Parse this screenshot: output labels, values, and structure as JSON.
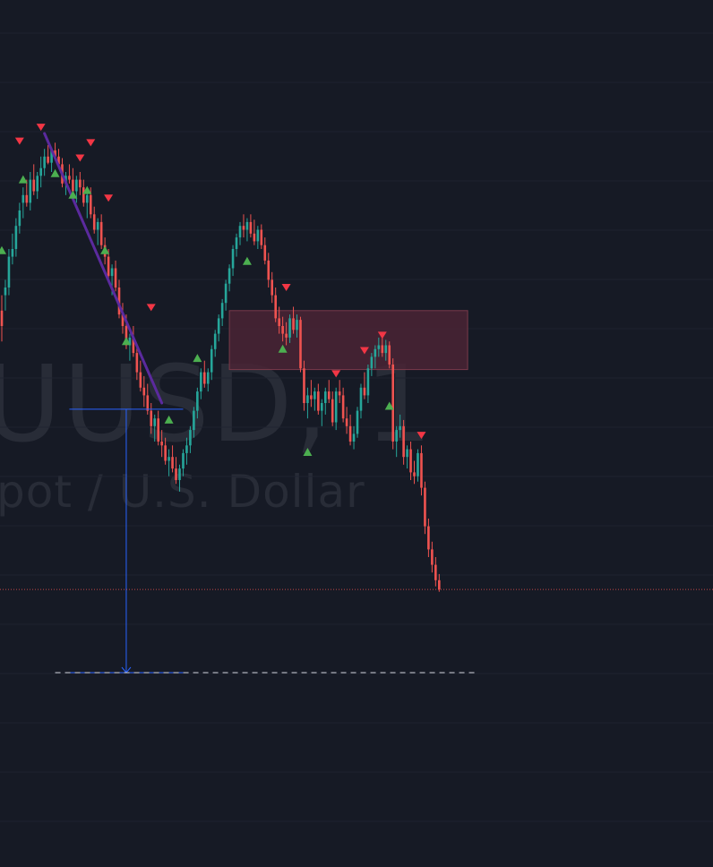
{
  "watermark": {
    "symbol": "UUSD, 1",
    "description": "pot / U.S. Dollar"
  },
  "colors": {
    "background": "#161a25",
    "grid": "#1f2330",
    "watermark": "#2a2e39",
    "candle_up": "#26a69a",
    "candle_down": "#ef5350",
    "candle_doji": "#f6a84a",
    "signal_buy": "#4caf50",
    "signal_sell": "#f23645",
    "trendline": "#5b2a9e",
    "zone_fill": "#4a2535",
    "zone_border": "#7a3a4a",
    "measure": "#2962ff",
    "target_line": "#d1d4dc",
    "last_price_line": "#ef5350"
  },
  "chart_data": {
    "type": "candlestick",
    "title": "",
    "xlabel": "",
    "ylabel": "",
    "x_range": [
      0,
      200
    ],
    "y_range": [
      0,
      1000
    ],
    "grid": true,
    "candles": [
      [
        0,
        620,
        640,
        580,
        600
      ],
      [
        1,
        640,
        660,
        620,
        650
      ],
      [
        2,
        650,
        700,
        640,
        690
      ],
      [
        3,
        690,
        720,
        680,
        700
      ],
      [
        4,
        700,
        740,
        690,
        730
      ],
      [
        5,
        730,
        760,
        720,
        750
      ],
      [
        6,
        760,
        780,
        740,
        770
      ],
      [
        7,
        770,
        790,
        755,
        760
      ],
      [
        8,
        760,
        800,
        750,
        790
      ],
      [
        9,
        790,
        810,
        770,
        775
      ],
      [
        10,
        775,
        800,
        765,
        795
      ],
      [
        11,
        795,
        820,
        780,
        805
      ],
      [
        12,
        805,
        830,
        795,
        820
      ],
      [
        13,
        820,
        835,
        810,
        812
      ],
      [
        14,
        812,
        832,
        800,
        828
      ],
      [
        15,
        828,
        838,
        815,
        820
      ],
      [
        16,
        820,
        830,
        805,
        810
      ],
      [
        17,
        810,
        818,
        780,
        785
      ],
      [
        18,
        785,
        800,
        770,
        795
      ],
      [
        19,
        795,
        810,
        785,
        790
      ],
      [
        20,
        790,
        805,
        770,
        775
      ],
      [
        21,
        775,
        795,
        760,
        790
      ],
      [
        22,
        790,
        800,
        770,
        780
      ],
      [
        23,
        780,
        790,
        755,
        760
      ],
      [
        24,
        760,
        775,
        740,
        770
      ],
      [
        25,
        770,
        780,
        740,
        745
      ],
      [
        26,
        745,
        755,
        720,
        725
      ],
      [
        27,
        725,
        740,
        705,
        735
      ],
      [
        28,
        735,
        745,
        700,
        705
      ],
      [
        29,
        705,
        715,
        680,
        690
      ],
      [
        30,
        690,
        700,
        660,
        665
      ],
      [
        31,
        665,
        680,
        640,
        675
      ],
      [
        32,
        675,
        685,
        645,
        650
      ],
      [
        33,
        650,
        660,
        610,
        615
      ],
      [
        34,
        615,
        630,
        590,
        600
      ],
      [
        35,
        600,
        615,
        570,
        575
      ],
      [
        36,
        575,
        590,
        555,
        585
      ],
      [
        37,
        585,
        600,
        560,
        565
      ],
      [
        38,
        565,
        575,
        530,
        540
      ],
      [
        39,
        540,
        555,
        515,
        520
      ],
      [
        40,
        520,
        535,
        495,
        510
      ],
      [
        41,
        510,
        525,
        485,
        490
      ],
      [
        42,
        490,
        500,
        460,
        470
      ],
      [
        43,
        470,
        485,
        450,
        480
      ],
      [
        44,
        480,
        490,
        445,
        450
      ],
      [
        45,
        450,
        465,
        430,
        445
      ],
      [
        46,
        445,
        455,
        420,
        425
      ],
      [
        47,
        425,
        440,
        405,
        430
      ],
      [
        48,
        430,
        445,
        410,
        415
      ],
      [
        49,
        415,
        430,
        395,
        400
      ],
      [
        50,
        400,
        420,
        385,
        415
      ],
      [
        51,
        415,
        440,
        405,
        435
      ],
      [
        52,
        435,
        455,
        420,
        445
      ],
      [
        53,
        445,
        470,
        435,
        465
      ],
      [
        54,
        465,
        495,
        455,
        490
      ],
      [
        55,
        490,
        520,
        480,
        515
      ],
      [
        56,
        515,
        545,
        505,
        540
      ],
      [
        57,
        540,
        555,
        520,
        525
      ],
      [
        58,
        525,
        545,
        515,
        540
      ],
      [
        59,
        540,
        575,
        530,
        570
      ],
      [
        60,
        570,
        595,
        560,
        590
      ],
      [
        61,
        590,
        615,
        580,
        610
      ],
      [
        62,
        610,
        635,
        600,
        630
      ],
      [
        63,
        630,
        660,
        620,
        655
      ],
      [
        64,
        655,
        680,
        645,
        675
      ],
      [
        65,
        675,
        705,
        665,
        700
      ],
      [
        66,
        700,
        720,
        690,
        715
      ],
      [
        67,
        715,
        735,
        705,
        730
      ],
      [
        68,
        730,
        745,
        715,
        725
      ],
      [
        69,
        725,
        740,
        710,
        735
      ],
      [
        70,
        735,
        745,
        715,
        720
      ],
      [
        71,
        720,
        738,
        705,
        710
      ],
      [
        72,
        710,
        730,
        700,
        725
      ],
      [
        73,
        725,
        732,
        700,
        705
      ],
      [
        74,
        705,
        715,
        680,
        685
      ],
      [
        75,
        685,
        695,
        650,
        660
      ],
      [
        76,
        660,
        670,
        630,
        640
      ],
      [
        77,
        640,
        650,
        605,
        610
      ],
      [
        78,
        610,
        625,
        590,
        600
      ],
      [
        79,
        600,
        612,
        580,
        590
      ],
      [
        80,
        590,
        605,
        575,
        585
      ],
      [
        81,
        585,
        615,
        578,
        610
      ],
      [
        82,
        610,
        625,
        590,
        595
      ],
      [
        83,
        595,
        615,
        585,
        608
      ],
      [
        84,
        608,
        612,
        540,
        545
      ],
      [
        85,
        545,
        555,
        490,
        500
      ],
      [
        86,
        500,
        520,
        480,
        510
      ],
      [
        87,
        510,
        530,
        495,
        505
      ],
      [
        88,
        505,
        520,
        490,
        515
      ],
      [
        89,
        515,
        525,
        485,
        490
      ],
      [
        90,
        490,
        505,
        470,
        500
      ],
      [
        91,
        500,
        520,
        485,
        515
      ],
      [
        92,
        515,
        530,
        500,
        505
      ],
      [
        93,
        505,
        515,
        470,
        475
      ],
      [
        94,
        475,
        520,
        465,
        515
      ],
      [
        95,
        515,
        530,
        500,
        510
      ],
      [
        96,
        510,
        520,
        475,
        480
      ],
      [
        97,
        480,
        495,
        460,
        470
      ],
      [
        98,
        470,
        485,
        445,
        450
      ],
      [
        99,
        450,
        470,
        440,
        460
      ],
      [
        100,
        460,
        495,
        455,
        490
      ],
      [
        101,
        490,
        525,
        480,
        520
      ],
      [
        102,
        520,
        540,
        505,
        510
      ],
      [
        103,
        510,
        550,
        500,
        545
      ],
      [
        104,
        545,
        565,
        535,
        560
      ],
      [
        105,
        560,
        575,
        545,
        570
      ],
      [
        106,
        570,
        585,
        560,
        575
      ],
      [
        107,
        575,
        590,
        560,
        565
      ],
      [
        108,
        565,
        582,
        555,
        575
      ],
      [
        109,
        575,
        580,
        545,
        550
      ],
      [
        110,
        550,
        558,
        440,
        450
      ],
      [
        111,
        450,
        470,
        430,
        465
      ],
      [
        112,
        465,
        485,
        455,
        470
      ],
      [
        113,
        470,
        478,
        420,
        430
      ],
      [
        114,
        430,
        445,
        415,
        440
      ],
      [
        115,
        440,
        450,
        400,
        410
      ],
      [
        116,
        410,
        425,
        395,
        405
      ],
      [
        117,
        405,
        440,
        398,
        435
      ],
      [
        118,
        435,
        445,
        380,
        390
      ],
      [
        119,
        390,
        398,
        330,
        340
      ],
      [
        120,
        340,
        350,
        300,
        310
      ],
      [
        121,
        310,
        320,
        280,
        290
      ],
      [
        122,
        290,
        300,
        262,
        270
      ],
      [
        123,
        270,
        278,
        255,
        258
      ]
    ],
    "sell_signals": [
      {
        "i": 5,
        "y": 840
      },
      {
        "i": 11,
        "y": 858
      },
      {
        "i": 22,
        "y": 818
      },
      {
        "i": 25,
        "y": 838
      },
      {
        "i": 30,
        "y": 766
      },
      {
        "i": 42,
        "y": 624
      },
      {
        "i": 80,
        "y": 650
      },
      {
        "i": 94,
        "y": 538
      },
      {
        "i": 102,
        "y": 568
      },
      {
        "i": 107,
        "y": 588
      },
      {
        "i": 118,
        "y": 458
      }
    ],
    "buy_signals": [
      {
        "i": 0,
        "y": 698
      },
      {
        "i": 6,
        "y": 790
      },
      {
        "i": 15,
        "y": 798
      },
      {
        "i": 20,
        "y": 770
      },
      {
        "i": 24,
        "y": 776
      },
      {
        "i": 29,
        "y": 698
      },
      {
        "i": 35,
        "y": 580
      },
      {
        "i": 47,
        "y": 478
      },
      {
        "i": 55,
        "y": 558
      },
      {
        "i": 69,
        "y": 684
      },
      {
        "i": 79,
        "y": 570
      },
      {
        "i": 86,
        "y": 436
      },
      {
        "i": 109,
        "y": 496
      }
    ],
    "trendline": {
      "from": {
        "i": 12,
        "y": 850
      },
      "to": {
        "i": 45,
        "y": 500
      }
    },
    "zone": {
      "from_i": 64,
      "to_i": 131,
      "y_top": 620,
      "y_bottom": 590
    },
    "measure": {
      "i": 35,
      "from_y": 492,
      "to_y": 150,
      "span_from_i": 19,
      "span_to_i": 51
    },
    "target_level": {
      "y": 150,
      "from_i": 15,
      "to_i": 134
    },
    "last_price_level": {
      "y": 258
    }
  }
}
